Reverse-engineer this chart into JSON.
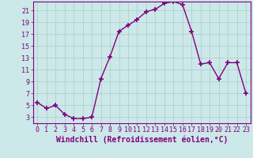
{
  "x": [
    0,
    1,
    2,
    3,
    4,
    5,
    6,
    7,
    8,
    9,
    10,
    11,
    12,
    13,
    14,
    15,
    16,
    17,
    18,
    19,
    20,
    21,
    22,
    23
  ],
  "y": [
    5.5,
    4.5,
    5.0,
    3.5,
    2.8,
    2.8,
    3.0,
    9.5,
    13.2,
    17.5,
    18.5,
    19.5,
    20.8,
    21.2,
    22.2,
    22.5,
    22.0,
    17.5,
    12.0,
    12.2,
    9.5,
    12.2,
    12.2,
    7.0
  ],
  "line_color": "#800080",
  "marker": "+",
  "marker_size": 5,
  "bg_color": "#cce8e8",
  "grid_color": "#aacccc",
  "xlabel": "Windchill (Refroidissement éolien,°C)",
  "xlim": [
    -0.5,
    23.5
  ],
  "ylim": [
    2,
    22.5
  ],
  "yticks": [
    3,
    5,
    7,
    9,
    11,
    13,
    15,
    17,
    19,
    21
  ],
  "xticks": [
    0,
    1,
    2,
    3,
    4,
    5,
    6,
    7,
    8,
    9,
    10,
    11,
    12,
    13,
    14,
    15,
    16,
    17,
    18,
    19,
    20,
    21,
    22,
    23
  ],
  "axis_color": "#800080",
  "tick_color": "#800080",
  "label_fontsize": 7,
  "tick_fontsize": 6
}
